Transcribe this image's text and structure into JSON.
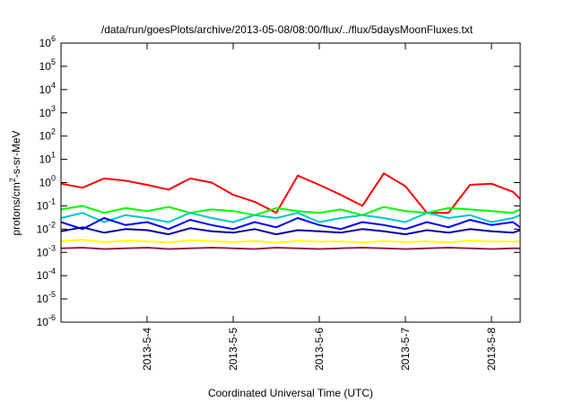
{
  "chart_data": {
    "type": "line",
    "title": "/data/run/goesPlots/archive/2013-05-08/08:00/flux/../flux/5daysMoonFluxes.txt",
    "xlabel": "Coordinated Universal Time (UTC)",
    "ylabel": {
      "prefix": "protons/cm",
      "sup": "2",
      "suffix": "-s-sr-MeV"
    },
    "yscale": "log",
    "ylim": [
      1e-06,
      1000000.0
    ],
    "xlim": [
      "2013-05-03 00:00",
      "2013-05-08 08:00"
    ],
    "grid": false,
    "legend": "none",
    "y_ticks": [
      {
        "base": "10",
        "exp": "-6",
        "value": 1e-06
      },
      {
        "base": "10",
        "exp": "-5",
        "value": 1e-05
      },
      {
        "base": "10",
        "exp": "-4",
        "value": 0.0001
      },
      {
        "base": "10",
        "exp": "-3",
        "value": 0.001
      },
      {
        "base": "10",
        "exp": "-2",
        "value": 0.01
      },
      {
        "base": "10",
        "exp": "-1",
        "value": 0.1
      },
      {
        "base": "10",
        "exp": "0",
        "value": 1
      },
      {
        "base": "10",
        "exp": "1",
        "value": 10
      },
      {
        "base": "10",
        "exp": "2",
        "value": 100
      },
      {
        "base": "10",
        "exp": "3",
        "value": 1000
      },
      {
        "base": "10",
        "exp": "4",
        "value": 10000
      },
      {
        "base": "10",
        "exp": "5",
        "value": 100000
      },
      {
        "base": "10",
        "exp": "6",
        "value": 1000000
      }
    ],
    "x_ticks": [
      {
        "label": "2013-5-4",
        "date": "2013-05-04 00:00"
      },
      {
        "label": "2013-5-5",
        "date": "2013-05-05 00:00"
      },
      {
        "label": "2013-5-6",
        "date": "2013-05-06 00:00"
      },
      {
        "label": "2013-5-7",
        "date": "2013-05-07 00:00"
      },
      {
        "label": "2013-5-8",
        "date": "2013-05-08 00:00"
      }
    ],
    "series": [
      {
        "color": "#ff0000",
        "x": [
          "2013-05-03 00:00",
          "2013-05-03 06:00",
          "2013-05-03 12:00",
          "2013-05-03 18:00",
          "2013-05-04 00:00",
          "2013-05-04 06:00",
          "2013-05-04 12:00",
          "2013-05-04 18:00",
          "2013-05-05 00:00",
          "2013-05-05 06:00",
          "2013-05-05 12:00",
          "2013-05-05 18:00",
          "2013-05-06 00:00",
          "2013-05-06 06:00",
          "2013-05-06 12:00",
          "2013-05-06 18:00",
          "2013-05-07 00:00",
          "2013-05-07 06:00",
          "2013-05-07 12:00",
          "2013-05-07 18:00",
          "2013-05-08 00:00",
          "2013-05-08 06:00",
          "2013-05-08 08:00"
        ],
        "values": [
          0.9,
          0.6,
          1.5,
          1.2,
          0.8,
          0.5,
          1.5,
          1.0,
          0.3,
          0.15,
          0.05,
          2.0,
          0.8,
          0.3,
          0.1,
          2.5,
          0.7,
          0.05,
          0.05,
          0.8,
          0.9,
          0.4,
          0.2
        ]
      },
      {
        "color": "#00ff00",
        "x": [
          "2013-05-03 00:00",
          "2013-05-03 06:00",
          "2013-05-03 12:00",
          "2013-05-03 18:00",
          "2013-05-04 00:00",
          "2013-05-04 06:00",
          "2013-05-04 12:00",
          "2013-05-04 18:00",
          "2013-05-05 00:00",
          "2013-05-05 06:00",
          "2013-05-05 12:00",
          "2013-05-05 18:00",
          "2013-05-06 00:00",
          "2013-05-06 06:00",
          "2013-05-06 12:00",
          "2013-05-06 18:00",
          "2013-05-07 00:00",
          "2013-05-07 06:00",
          "2013-05-07 12:00",
          "2013-05-07 18:00",
          "2013-05-08 00:00",
          "2013-05-08 06:00",
          "2013-05-08 08:00"
        ],
        "values": [
          0.07,
          0.1,
          0.05,
          0.08,
          0.06,
          0.09,
          0.05,
          0.07,
          0.06,
          0.04,
          0.08,
          0.06,
          0.05,
          0.07,
          0.04,
          0.09,
          0.06,
          0.05,
          0.08,
          0.07,
          0.06,
          0.05,
          0.07
        ]
      },
      {
        "color": "#00c8c8",
        "x": [
          "2013-05-03 00:00",
          "2013-05-03 06:00",
          "2013-05-03 12:00",
          "2013-05-03 18:00",
          "2013-05-04 00:00",
          "2013-05-04 06:00",
          "2013-05-04 12:00",
          "2013-05-04 18:00",
          "2013-05-05 00:00",
          "2013-05-05 06:00",
          "2013-05-05 12:00",
          "2013-05-05 18:00",
          "2013-05-06 00:00",
          "2013-05-06 06:00",
          "2013-05-06 12:00",
          "2013-05-06 18:00",
          "2013-05-07 00:00",
          "2013-05-07 06:00",
          "2013-05-07 12:00",
          "2013-05-07 18:00",
          "2013-05-08 00:00",
          "2013-05-08 06:00",
          "2013-05-08 08:00"
        ],
        "values": [
          0.03,
          0.05,
          0.02,
          0.04,
          0.03,
          0.02,
          0.05,
          0.03,
          0.02,
          0.04,
          0.03,
          0.05,
          0.02,
          0.03,
          0.04,
          0.03,
          0.02,
          0.05,
          0.03,
          0.04,
          0.02,
          0.03,
          0.04
        ]
      },
      {
        "color": "#0000ff",
        "x": [
          "2013-05-03 00:00",
          "2013-05-03 06:00",
          "2013-05-03 12:00",
          "2013-05-03 18:00",
          "2013-05-04 00:00",
          "2013-05-04 06:00",
          "2013-05-04 12:00",
          "2013-05-04 18:00",
          "2013-05-05 00:00",
          "2013-05-05 06:00",
          "2013-05-05 12:00",
          "2013-05-05 18:00",
          "2013-05-06 00:00",
          "2013-05-06 06:00",
          "2013-05-06 12:00",
          "2013-05-06 18:00",
          "2013-05-07 00:00",
          "2013-05-07 06:00",
          "2013-05-07 12:00",
          "2013-05-07 18:00",
          "2013-05-08 00:00",
          "2013-05-08 06:00",
          "2013-05-08 08:00"
        ],
        "values": [
          0.02,
          0.01,
          0.03,
          0.015,
          0.02,
          0.01,
          0.025,
          0.015,
          0.01,
          0.02,
          0.012,
          0.03,
          0.015,
          0.01,
          0.02,
          0.015,
          0.01,
          0.02,
          0.012,
          0.025,
          0.015,
          0.02,
          0.012
        ]
      },
      {
        "color": "#0000a0",
        "x": [
          "2013-05-03 00:00",
          "2013-05-03 06:00",
          "2013-05-03 12:00",
          "2013-05-03 18:00",
          "2013-05-04 00:00",
          "2013-05-04 06:00",
          "2013-05-04 12:00",
          "2013-05-04 18:00",
          "2013-05-05 00:00",
          "2013-05-05 06:00",
          "2013-05-05 12:00",
          "2013-05-05 18:00",
          "2013-05-06 00:00",
          "2013-05-06 06:00",
          "2013-05-06 12:00",
          "2013-05-06 18:00",
          "2013-05-07 00:00",
          "2013-05-07 06:00",
          "2013-05-07 12:00",
          "2013-05-07 18:00",
          "2013-05-08 00:00",
          "2013-05-08 06:00",
          "2013-05-08 08:00"
        ],
        "values": [
          0.008,
          0.012,
          0.007,
          0.01,
          0.009,
          0.006,
          0.011,
          0.008,
          0.007,
          0.01,
          0.006,
          0.009,
          0.008,
          0.007,
          0.01,
          0.008,
          0.006,
          0.009,
          0.007,
          0.01,
          0.008,
          0.007,
          0.009
        ]
      },
      {
        "color": "#ffff00",
        "x": [
          "2013-05-03 00:00",
          "2013-05-03 06:00",
          "2013-05-03 12:00",
          "2013-05-03 18:00",
          "2013-05-04 00:00",
          "2013-05-04 06:00",
          "2013-05-04 12:00",
          "2013-05-04 18:00",
          "2013-05-05 00:00",
          "2013-05-05 06:00",
          "2013-05-05 12:00",
          "2013-05-05 18:00",
          "2013-05-06 00:00",
          "2013-05-06 06:00",
          "2013-05-06 12:00",
          "2013-05-06 18:00",
          "2013-05-07 00:00",
          "2013-05-07 06:00",
          "2013-05-07 12:00",
          "2013-05-07 18:00",
          "2013-05-08 00:00",
          "2013-05-08 06:00",
          "2013-05-08 08:00"
        ],
        "values": [
          0.003,
          0.0035,
          0.0028,
          0.0032,
          0.003,
          0.0027,
          0.0033,
          0.003,
          0.0028,
          0.0031,
          0.0026,
          0.0032,
          0.0029,
          0.003,
          0.0027,
          0.0031,
          0.0028,
          0.003,
          0.0027,
          0.0032,
          0.003,
          0.0029,
          0.0031
        ]
      },
      {
        "color": "#8b2252",
        "x": [
          "2013-05-03 00:00",
          "2013-05-03 06:00",
          "2013-05-03 12:00",
          "2013-05-03 18:00",
          "2013-05-04 00:00",
          "2013-05-04 06:00",
          "2013-05-04 12:00",
          "2013-05-04 18:00",
          "2013-05-05 00:00",
          "2013-05-05 06:00",
          "2013-05-05 12:00",
          "2013-05-05 18:00",
          "2013-05-06 00:00",
          "2013-05-06 06:00",
          "2013-05-06 12:00",
          "2013-05-06 18:00",
          "2013-05-07 00:00",
          "2013-05-07 06:00",
          "2013-05-07 12:00",
          "2013-05-07 18:00",
          "2013-05-08 00:00",
          "2013-05-08 06:00",
          "2013-05-08 08:00"
        ],
        "values": [
          0.0015,
          0.0016,
          0.0014,
          0.0015,
          0.0016,
          0.0014,
          0.0015,
          0.0016,
          0.0015,
          0.0014,
          0.0016,
          0.0015,
          0.0014,
          0.0015,
          0.0016,
          0.0015,
          0.0014,
          0.0015,
          0.0016,
          0.0015,
          0.0014,
          0.0015,
          0.0015
        ]
      }
    ]
  }
}
